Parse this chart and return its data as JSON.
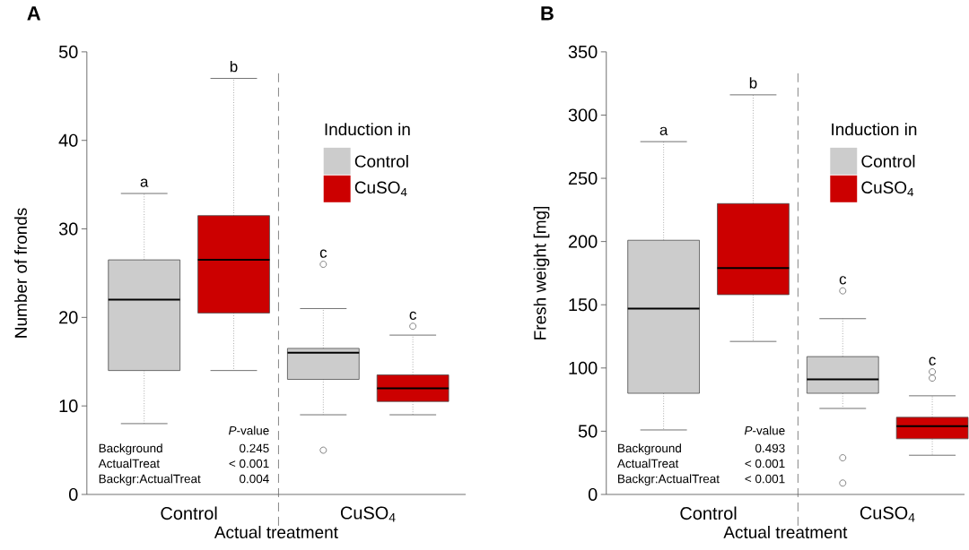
{
  "chart_data": [
    {
      "type": "box",
      "title": "A",
      "xlabel": "Actual treatment",
      "ylabel": "Number of fronds",
      "legend_title": "Induction in",
      "legend": "top right",
      "categories": [
        "Control",
        "CuSO$_{4}$"
      ],
      "series": [
        {
          "name": "Control",
          "color": "#cccccc",
          "boxes": [
            {
              "low": 8,
              "q1": 14,
              "median": 22,
              "q3": 26.5,
              "high": 34
            },
            {
              "low": 9,
              "q1": 13,
              "median": 16,
              "q3": 16.5,
              "high": 21,
              "outliers": [
                26,
                5
              ]
            }
          ]
        },
        {
          "name": "CuSO$_{4}$",
          "color": "#cc0000",
          "boxes": [
            {
              "low": 14,
              "q1": 20.5,
              "median": 26.5,
              "q3": 31.5,
              "high": 47
            },
            {
              "low": 9,
              "q1": 10.5,
              "median": 12,
              "q3": 13.5,
              "high": 18,
              "outliers": [
                19
              ]
            }
          ]
        }
      ],
      "ylim": [
        0,
        50
      ],
      "yticks": [
        0,
        10,
        20,
        30,
        40,
        50
      ],
      "annotations": [
        "a",
        "b",
        "c",
        "c",
        "*P*-value",
        "Background",
        "0.245",
        "ActualTreat",
        "< 0.001",
        "Backgr:ActualTreat",
        "0.004"
      ]
    },
    {
      "type": "box",
      "title": "B",
      "xlabel": "Actual treatment",
      "ylabel": "Fresh weight [mg]",
      "legend_title": "Induction in",
      "legend": "top right",
      "categories": [
        "Control",
        "CuSO$_{4}$"
      ],
      "series": [
        {
          "name": "Control",
          "color": "#cccccc",
          "boxes": [
            {
              "low": 51,
              "q1": 80,
              "median": 147,
              "q3": 201,
              "high": 279
            },
            {
              "low": 68,
              "q1": 80,
              "median": 91,
              "q3": 109,
              "high": 139,
              "outliers": [
                161,
                29,
                9
              ]
            }
          ]
        },
        {
          "name": "CuSO$_{4}$",
          "color": "#cc0000",
          "boxes": [
            {
              "low": 121,
              "q1": 158,
              "median": 179,
              "q3": 230,
              "high": 316
            },
            {
              "low": 31,
              "q1": 44,
              "median": 54,
              "q3": 61,
              "high": 78,
              "outliers": [
                97,
                92
              ]
            }
          ]
        }
      ],
      "ylim": [
        0,
        350
      ],
      "yticks": [
        0,
        50,
        100,
        150,
        200,
        250,
        300,
        350
      ],
      "annotations": [
        "a",
        "b",
        "c",
        "c",
        "*P*-value",
        "Background",
        "0.493",
        "ActualTreat",
        "< 0.001",
        "Backgr:ActualTreat",
        "< 0.001"
      ]
    }
  ]
}
